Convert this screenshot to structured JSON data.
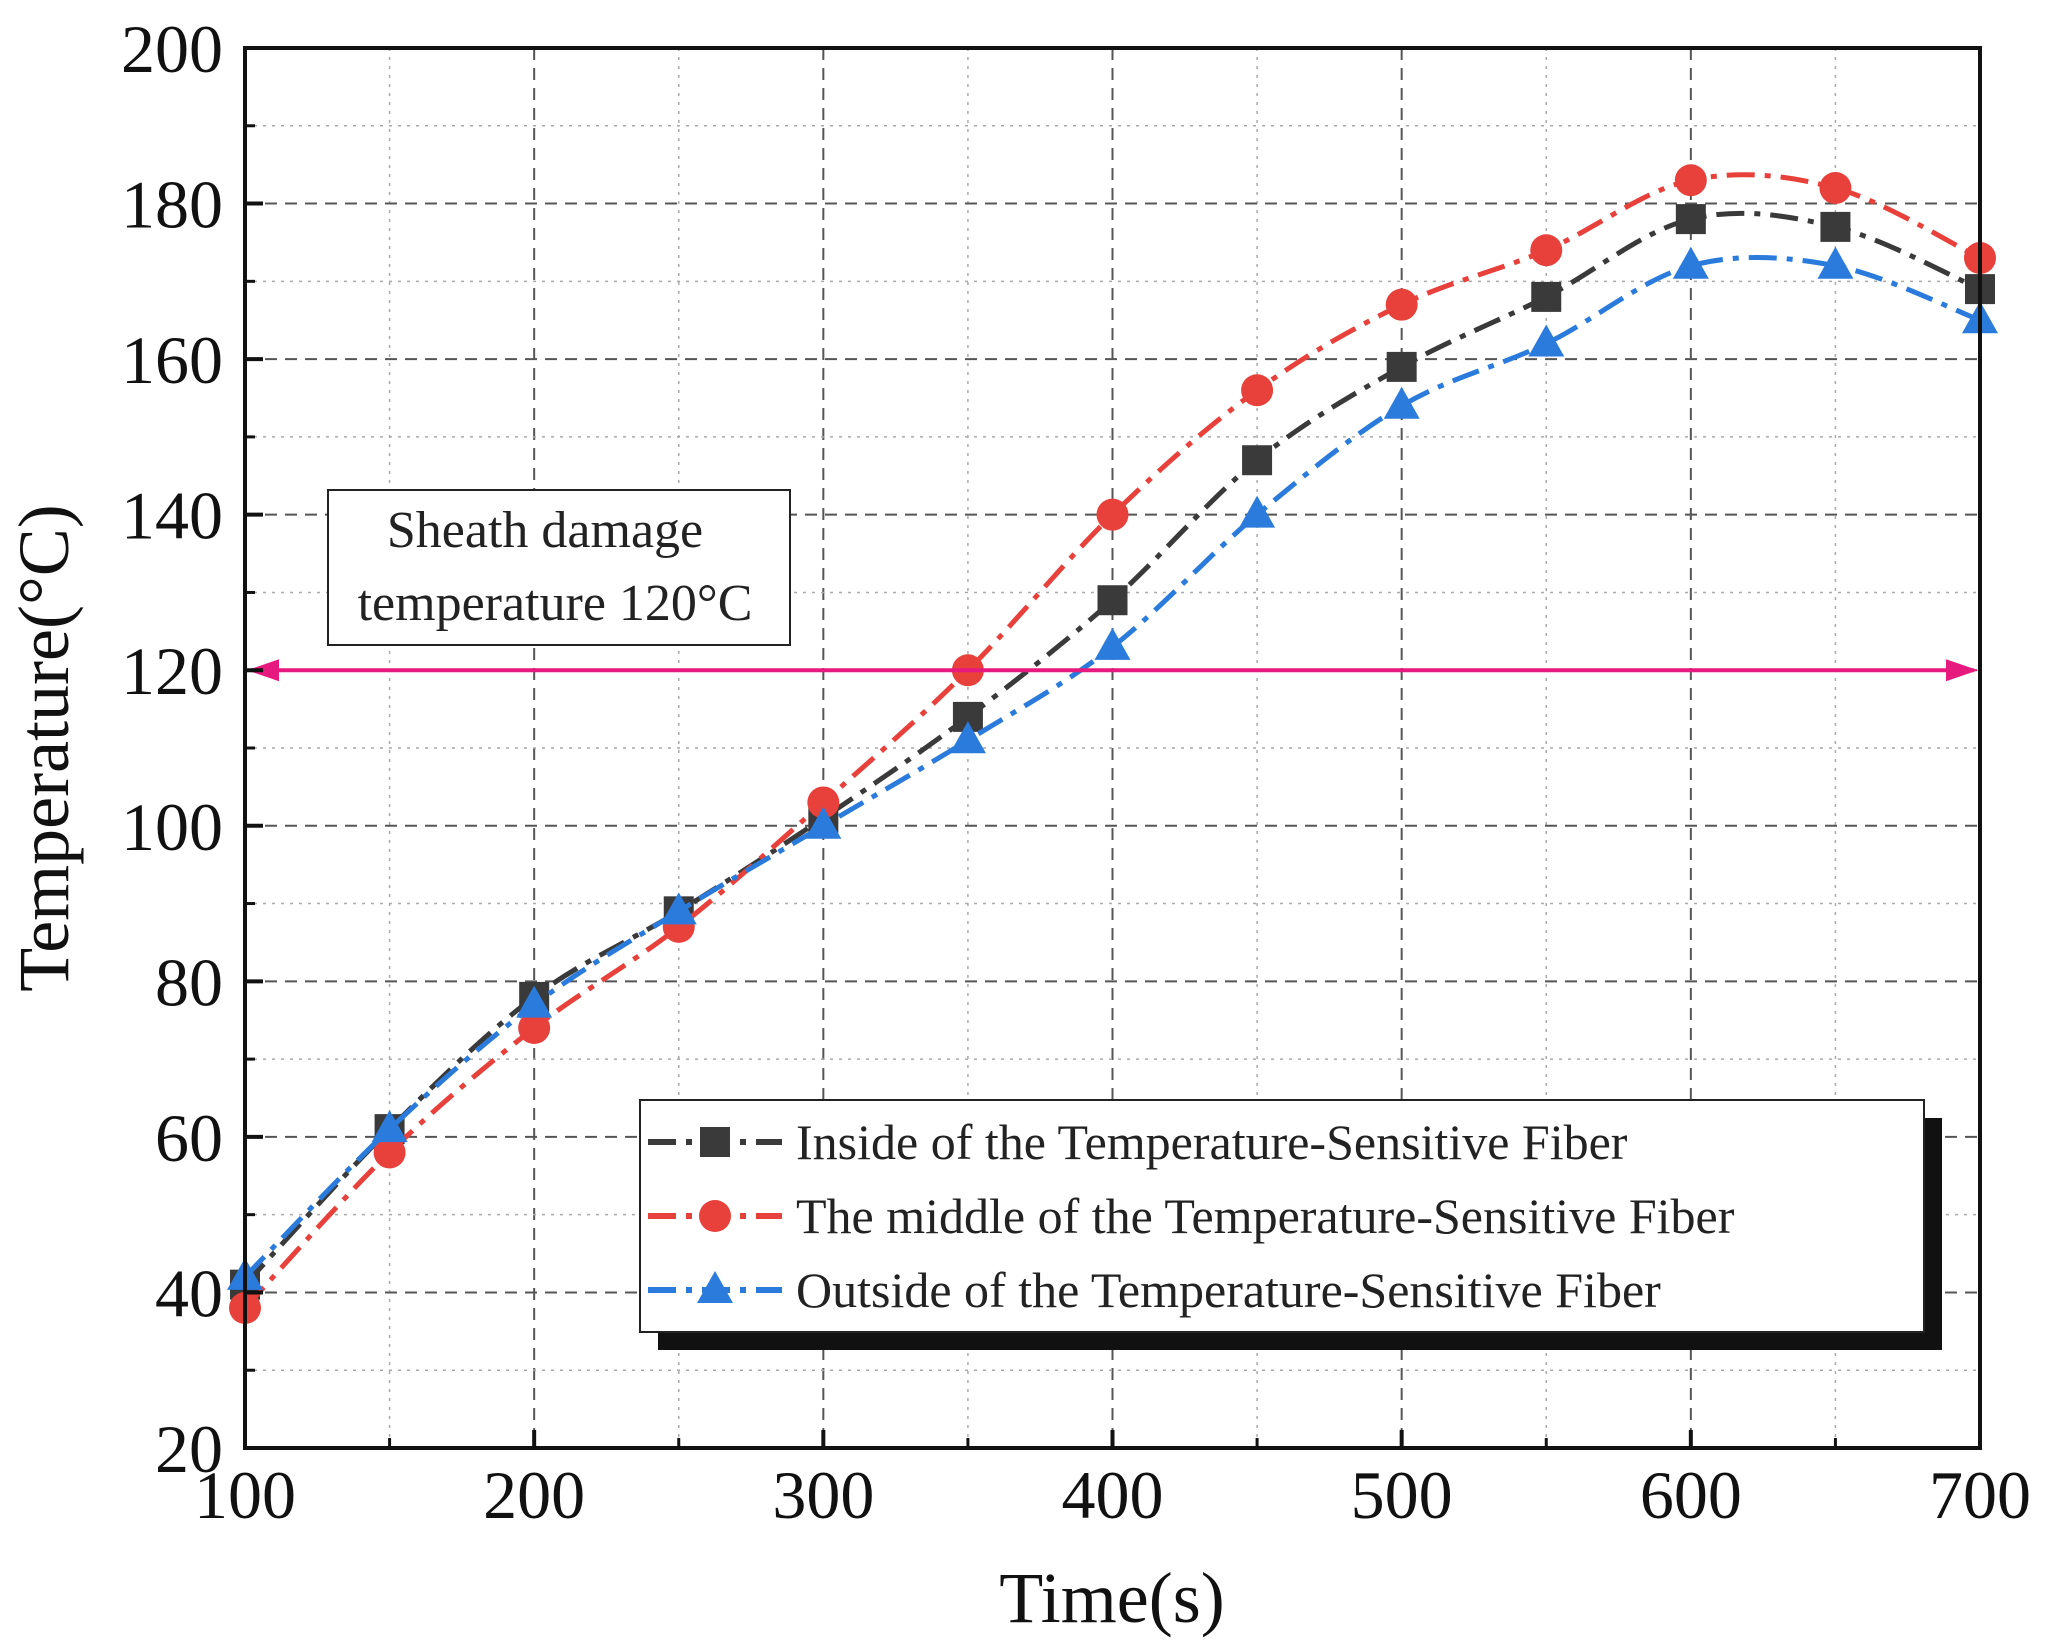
{
  "chart_data": {
    "type": "line",
    "title": "",
    "xlabel": "Time(s)",
    "ylabel": "Temperature(°C)",
    "xlim": [
      100,
      700
    ],
    "ylim": [
      20,
      200
    ],
    "x_ticks": [
      100,
      200,
      300,
      400,
      500,
      600,
      700
    ],
    "y_ticks": [
      20,
      40,
      60,
      80,
      100,
      120,
      140,
      160,
      180,
      200
    ],
    "grid": true,
    "legend_position": "bottom-right",
    "series": [
      {
        "name": "Inside of the Temperature-Sensitive Fiber",
        "color": "#3a3a3a",
        "marker": "square",
        "x": [
          100,
          150,
          200,
          250,
          300,
          350,
          400,
          450,
          500,
          550,
          600,
          650,
          700
        ],
        "y": [
          41,
          61,
          78,
          89,
          101,
          114,
          129,
          147,
          159,
          168,
          178,
          177,
          169
        ]
      },
      {
        "name": "The middle of the Temperature-Sensitive Fiber",
        "color": "#e8403a",
        "marker": "circle",
        "x": [
          100,
          150,
          200,
          250,
          300,
          350,
          400,
          450,
          500,
          550,
          600,
          650,
          700
        ],
        "y": [
          38,
          58,
          74,
          87,
          103,
          120,
          140,
          156,
          167,
          174,
          183,
          182,
          173
        ]
      },
      {
        "name": "Outside of the Temperature-Sensitive Fiber",
        "color": "#2a7bdc",
        "marker": "triangle",
        "x": [
          100,
          150,
          200,
          250,
          300,
          350,
          400,
          450,
          500,
          550,
          600,
          650,
          700
        ],
        "y": [
          42,
          61,
          77,
          89,
          100,
          111,
          123,
          140,
          154,
          162,
          172,
          172,
          165
        ]
      }
    ],
    "reference_line": {
      "y": 120,
      "color": "#e6197e",
      "label_line1": "Sheath damage",
      "label_line2": "temperature 120°C"
    }
  }
}
